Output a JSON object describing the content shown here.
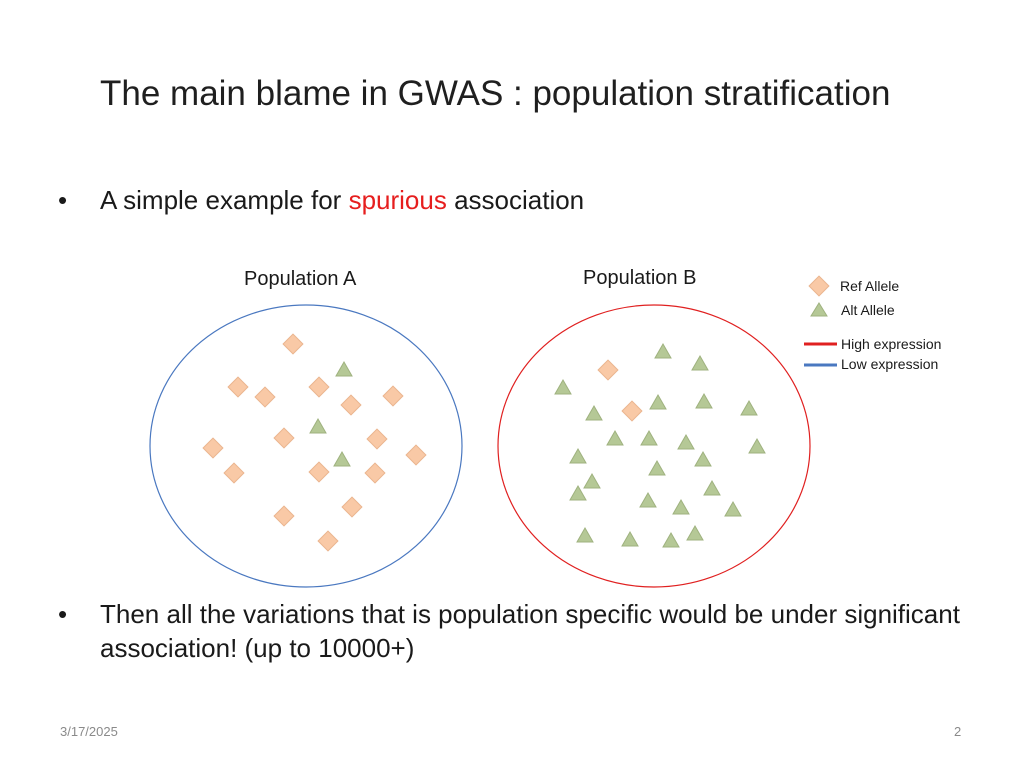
{
  "slide": {
    "title": "The main blame in GWAS : population stratification",
    "bullet1": {
      "before": "A simple example for ",
      "highlight": "spurious",
      "after": " association"
    },
    "bullet2": "Then all the variations that is population specific would be under significant association! (up to 10000+)",
    "bullet_symbol": "•",
    "date": "3/17/2025",
    "page_number": "2"
  },
  "diagram": {
    "population_a": {
      "label": "Population A",
      "outline_color": "#4a78c0"
    },
    "population_b": {
      "label": "Population B",
      "outline_color": "#e02020"
    },
    "legend": {
      "ref_allele": "Ref Allele",
      "alt_allele": "Alt Allele",
      "high_expression": "High expression",
      "low_expression": "Low expression"
    },
    "colors": {
      "ref_fill": "#f9c9a6",
      "ref_stroke": "#eab48e",
      "alt_fill": "#b5c896",
      "alt_stroke": "#9fb27f",
      "high": "#e02020",
      "low": "#4a78c0",
      "highlight_text": "#e61e1e"
    }
  }
}
